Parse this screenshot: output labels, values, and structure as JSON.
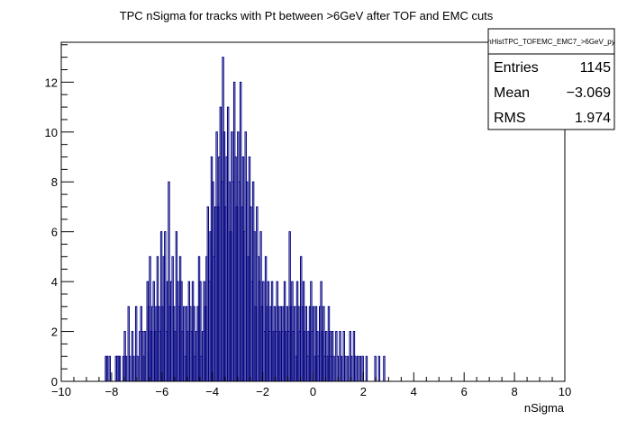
{
  "chart_data": {
    "type": "bar",
    "title": "TPC nSigma for tracks with Pt between >6GeV after TOF and EMC cuts",
    "xlabel": "nSigma",
    "ylabel": "",
    "xlim": [
      -10,
      10
    ],
    "ylim": [
      0,
      13.6
    ],
    "x_ticks": [
      "−10",
      "−8",
      "−6",
      "−4",
      "−2",
      "0",
      "2",
      "4",
      "6",
      "8",
      "10"
    ],
    "x_tick_values": [
      -10,
      -8,
      -6,
      -4,
      -2,
      0,
      2,
      4,
      6,
      8,
      10
    ],
    "y_ticks": [
      "0",
      "2",
      "4",
      "6",
      "8",
      "10",
      "12"
    ],
    "y_tick_values": [
      0,
      2,
      4,
      6,
      8,
      10,
      12
    ],
    "bin_width": 0.05,
    "series_color": "#000080",
    "series": [
      {
        "points": [
          [
            -8.25,
            1
          ],
          [
            -8.2,
            1
          ],
          [
            -8.1,
            1
          ],
          [
            -7.85,
            1
          ],
          [
            -7.8,
            1
          ],
          [
            -7.75,
            1
          ],
          [
            -7.7,
            1
          ],
          [
            -7.55,
            1
          ],
          [
            -7.5,
            2
          ],
          [
            -7.45,
            1
          ],
          [
            -7.35,
            3
          ],
          [
            -7.3,
            1
          ],
          [
            -7.2,
            2
          ],
          [
            -7.15,
            1
          ],
          [
            -7.05,
            3
          ],
          [
            -7.0,
            1
          ],
          [
            -6.9,
            2
          ],
          [
            -6.85,
            3
          ],
          [
            -6.8,
            2
          ],
          [
            -6.75,
            1
          ],
          [
            -6.7,
            2
          ],
          [
            -6.6,
            4
          ],
          [
            -6.55,
            3
          ],
          [
            -6.5,
            5
          ],
          [
            -6.45,
            2
          ],
          [
            -6.4,
            3
          ],
          [
            -6.35,
            4
          ],
          [
            -6.3,
            2
          ],
          [
            -6.25,
            3
          ],
          [
            -6.2,
            5
          ],
          [
            -6.15,
            3
          ],
          [
            -6.1,
            2
          ],
          [
            -6.05,
            6
          ],
          [
            -6.0,
            3
          ],
          [
            -5.95,
            5
          ],
          [
            -5.9,
            6
          ],
          [
            -5.85,
            2
          ],
          [
            -5.8,
            4
          ],
          [
            -5.75,
            8
          ],
          [
            -5.7,
            3
          ],
          [
            -5.65,
            4
          ],
          [
            -5.6,
            5
          ],
          [
            -5.55,
            3
          ],
          [
            -5.5,
            2
          ],
          [
            -5.45,
            6
          ],
          [
            -5.4,
            4
          ],
          [
            -5.35,
            3
          ],
          [
            -5.3,
            5
          ],
          [
            -5.25,
            4
          ],
          [
            -5.2,
            2
          ],
          [
            -5.15,
            3
          ],
          [
            -5.1,
            1
          ],
          [
            -5.05,
            3
          ],
          [
            -5.0,
            2
          ],
          [
            -4.95,
            4
          ],
          [
            -4.9,
            3
          ],
          [
            -4.85,
            2
          ],
          [
            -4.8,
            4
          ],
          [
            -4.75,
            3
          ],
          [
            -4.7,
            1
          ],
          [
            -4.65,
            2
          ],
          [
            -4.6,
            3
          ],
          [
            -4.55,
            5
          ],
          [
            -4.5,
            4
          ],
          [
            -4.45,
            1
          ],
          [
            -4.4,
            2
          ],
          [
            -4.35,
            4
          ],
          [
            -4.3,
            3
          ],
          [
            -4.25,
            5
          ],
          [
            -4.2,
            7
          ],
          [
            -4.15,
            4
          ],
          [
            -4.1,
            6
          ],
          [
            -4.05,
            9
          ],
          [
            -4.0,
            8
          ],
          [
            -3.95,
            5
          ],
          [
            -3.9,
            7
          ],
          [
            -3.85,
            10
          ],
          [
            -3.8,
            7
          ],
          [
            -3.75,
            9
          ],
          [
            -3.7,
            11
          ],
          [
            -3.65,
            8
          ],
          [
            -3.6,
            13
          ],
          [
            -3.55,
            10
          ],
          [
            -3.5,
            7
          ],
          [
            -3.45,
            9
          ],
          [
            -3.4,
            11
          ],
          [
            -3.35,
            8
          ],
          [
            -3.3,
            6
          ],
          [
            -3.25,
            10
          ],
          [
            -3.2,
            8
          ],
          [
            -3.15,
            12
          ],
          [
            -3.1,
            9
          ],
          [
            -3.05,
            7
          ],
          [
            -3.0,
            10
          ],
          [
            -2.95,
            8
          ],
          [
            -2.9,
            12
          ],
          [
            -2.85,
            7
          ],
          [
            -2.8,
            9
          ],
          [
            -2.75,
            6
          ],
          [
            -2.7,
            10
          ],
          [
            -2.65,
            8
          ],
          [
            -2.6,
            5
          ],
          [
            -2.55,
            9
          ],
          [
            -2.5,
            7
          ],
          [
            -2.45,
            4
          ],
          [
            -2.4,
            8
          ],
          [
            -2.35,
            6
          ],
          [
            -2.3,
            3
          ],
          [
            -2.25,
            7
          ],
          [
            -2.2,
            5
          ],
          [
            -2.15,
            4
          ],
          [
            -2.1,
            6
          ],
          [
            -2.05,
            3
          ],
          [
            -2.0,
            4
          ],
          [
            -1.95,
            2
          ],
          [
            -1.9,
            5
          ],
          [
            -1.85,
            3
          ],
          [
            -1.8,
            4
          ],
          [
            -1.75,
            2
          ],
          [
            -1.7,
            3
          ],
          [
            -1.65,
            4
          ],
          [
            -1.6,
            2
          ],
          [
            -1.55,
            3
          ],
          [
            -1.5,
            2
          ],
          [
            -1.45,
            4
          ],
          [
            -1.4,
            3
          ],
          [
            -1.35,
            2
          ],
          [
            -1.3,
            3
          ],
          [
            -1.25,
            2
          ],
          [
            -1.2,
            3
          ],
          [
            -1.15,
            4
          ],
          [
            -1.1,
            2
          ],
          [
            -1.05,
            3
          ],
          [
            -1.0,
            2
          ],
          [
            -0.95,
            6
          ],
          [
            -0.9,
            3
          ],
          [
            -0.85,
            4
          ],
          [
            -0.8,
            2
          ],
          [
            -0.75,
            3
          ],
          [
            -0.7,
            1
          ],
          [
            -0.65,
            4
          ],
          [
            -0.6,
            3
          ],
          [
            -0.55,
            2
          ],
          [
            -0.5,
            5
          ],
          [
            -0.45,
            3
          ],
          [
            -0.4,
            4
          ],
          [
            -0.35,
            2
          ],
          [
            -0.3,
            3
          ],
          [
            -0.25,
            1
          ],
          [
            -0.2,
            2
          ],
          [
            -0.15,
            3
          ],
          [
            -0.1,
            4
          ],
          [
            -0.05,
            2
          ],
          [
            0.0,
            3
          ],
          [
            0.05,
            1
          ],
          [
            0.1,
            3
          ],
          [
            0.15,
            2
          ],
          [
            0.2,
            1
          ],
          [
            0.25,
            3
          ],
          [
            0.3,
            4
          ],
          [
            0.35,
            2
          ],
          [
            0.4,
            3
          ],
          [
            0.45,
            1
          ],
          [
            0.5,
            2
          ],
          [
            0.55,
            1
          ],
          [
            0.6,
            3
          ],
          [
            0.65,
            2
          ],
          [
            0.7,
            1
          ],
          [
            0.75,
            2
          ],
          [
            0.8,
            1
          ],
          [
            0.9,
            2
          ],
          [
            0.95,
            1
          ],
          [
            1.05,
            2
          ],
          [
            1.1,
            1
          ],
          [
            1.2,
            2
          ],
          [
            1.25,
            1
          ],
          [
            1.35,
            1
          ],
          [
            1.45,
            2
          ],
          [
            1.5,
            1
          ],
          [
            1.6,
            2
          ],
          [
            1.65,
            1
          ],
          [
            1.75,
            1
          ],
          [
            1.85,
            1
          ],
          [
            1.95,
            1
          ],
          [
            2.1,
            1
          ],
          [
            2.45,
            1
          ],
          [
            2.6,
            1
          ],
          [
            2.8,
            1
          ]
        ]
      }
    ],
    "grid": false,
    "legend": "none",
    "stats_box": {
      "title": "hHistTPC_TOFEMC_EMC7_>6GeV_py",
      "rows": [
        {
          "label": "Entries",
          "value": "1145"
        },
        {
          "label": "Mean",
          "value": "−3.069"
        },
        {
          "label": "RMS",
          "value": "1.974"
        }
      ],
      "placement": "top-right"
    }
  }
}
